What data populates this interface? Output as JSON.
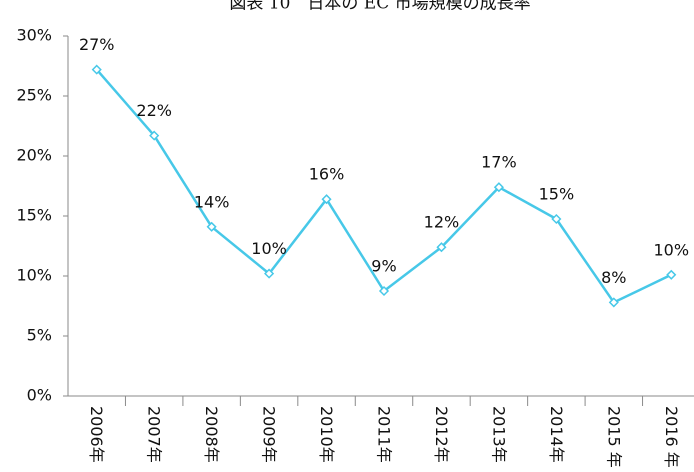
{
  "chart_data": {
    "type": "line",
    "title": "図表 10　日本の EC 市場規模の成長率",
    "categories": [
      "2006年",
      "2007年",
      "2008年",
      "2009年",
      "2010年",
      "2011年",
      "2012年",
      "2013年",
      "2014年",
      "2015 年",
      "2016 年"
    ],
    "series": [
      {
        "color": "#47c8e8",
        "values": [
          27.2,
          21.7,
          14.1,
          10.2,
          16.4,
          8.75,
          12.4,
          17.4,
          14.75,
          7.8,
          10.1
        ],
        "value_labels": [
          "27%",
          "22%",
          "14%",
          "10%",
          "16%",
          "9%",
          "12%",
          "17%",
          "15%",
          "8%",
          "10%"
        ]
      }
    ],
    "ylim": [
      0,
      30
    ],
    "yticks": [
      {
        "value": 0,
        "label": "0%"
      },
      {
        "value": 5,
        "label": "5%"
      },
      {
        "value": 10,
        "label": "10%"
      },
      {
        "value": 15,
        "label": "15%"
      },
      {
        "value": 20,
        "label": "20%"
      },
      {
        "value": 25,
        "label": "25%"
      },
      {
        "value": 30,
        "label": "30%"
      }
    ],
    "grid": false
  }
}
